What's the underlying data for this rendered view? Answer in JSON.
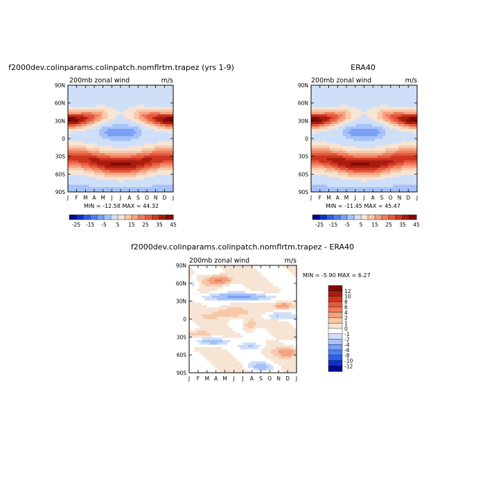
{
  "chart_data": [
    {
      "type": "heatmap",
      "title": "f2000dev.colinparams.colinpatch.nomflrtm.trapez (yrs 1-9)",
      "subtitle": "200mb zonal wind",
      "units": "m/s",
      "x": [
        "J",
        "F",
        "M",
        "A",
        "M",
        "J",
        "J",
        "A",
        "S",
        "O",
        "N",
        "D",
        "J"
      ],
      "y": [
        "90N",
        "60N",
        "30N",
        "0",
        "30S",
        "60S",
        "90S"
      ],
      "stats": "MIN = -12.58 MAX =  44.32",
      "colorbar_ticks": [
        "-25",
        "-15",
        "-5",
        "5",
        "15",
        "25",
        "35",
        "45"
      ],
      "colorbar_placement": "bottom",
      "value_range": [
        -12.58,
        44.32
      ]
    },
    {
      "type": "heatmap",
      "title": "ERA40",
      "subtitle": "200mb zonal wind",
      "units": "m/s",
      "x": [
        "J",
        "F",
        "M",
        "A",
        "M",
        "J",
        "J",
        "A",
        "S",
        "O",
        "N",
        "D",
        "J"
      ],
      "y": [
        "90N",
        "60N",
        "30N",
        "0",
        "30S",
        "60S",
        "90S"
      ],
      "stats": "MIN = -11.45 MAX =  45.47",
      "colorbar_ticks": [
        "-25",
        "-15",
        "-5",
        "5",
        "15",
        "25",
        "35",
        "45"
      ],
      "colorbar_placement": "bottom",
      "value_range": [
        -11.45,
        45.47
      ]
    },
    {
      "type": "heatmap",
      "title": "f2000dev.colinparams.colinpatch.nomflrtm.trapez - ERA40",
      "subtitle": "200mb zonal wind",
      "units": "m/s",
      "x": [
        "J",
        "F",
        "M",
        "A",
        "M",
        "J",
        "J",
        "A",
        "S",
        "O",
        "N",
        "D",
        "J"
      ],
      "y": [
        "90N",
        "60N",
        "30N",
        "0",
        "30S",
        "60S",
        "90S"
      ],
      "stats": "MIN =  -5.90 MAX =   6.27",
      "colorbar_ticks": [
        "12",
        "10",
        "8",
        "6",
        "4",
        "2",
        "1",
        "0",
        "-1",
        "-2",
        "-4",
        "-6",
        "-8",
        "-10",
        "-12"
      ],
      "colorbar_placement": "right",
      "value_range": [
        -5.9,
        6.27
      ]
    }
  ],
  "colors": {
    "full_scale": [
      "#08088c",
      "#1030c8",
      "#2f5fe6",
      "#4f80f0",
      "#79a0f5",
      "#a6c2f8",
      "#cfdff8",
      "#f6e4d4",
      "#f8c8a8",
      "#f4a282",
      "#ee7c5c",
      "#e45a3c",
      "#cc3620",
      "#a81c10",
      "#7e0a05"
    ],
    "diff_scale": [
      "#7e0a05",
      "#a81c10",
      "#cc3620",
      "#e45a3c",
      "#ee7c5c",
      "#f4a282",
      "#f8c8a8",
      "#f6e4d4",
      "#ffffff",
      "#cfdff8",
      "#a6c2f8",
      "#79a0f5",
      "#4f80f0",
      "#2f5fe6",
      "#1030c8",
      "#08088c"
    ]
  }
}
